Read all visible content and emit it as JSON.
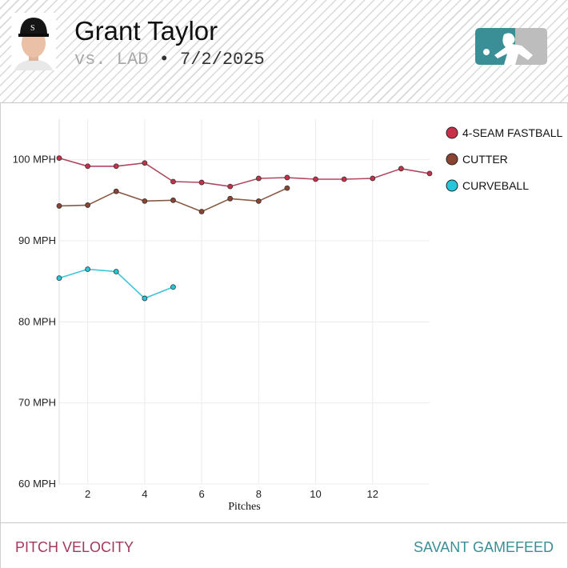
{
  "header": {
    "player_name": "Grant Taylor",
    "opponent": "vs. LAD",
    "separator": "•",
    "date": "7/2/2025",
    "team_logo": "white-sox-cap-avatar",
    "brand_logo": "mlb-logo"
  },
  "footer": {
    "left_label": "PITCH VELOCITY",
    "right_label": "SAVANT GAMEFEED"
  },
  "colors": {
    "fastball": "#c8304a",
    "cutter": "#8b4332",
    "curveball": "#26c6da",
    "fastball_line": "#b04760",
    "cutter_line": "#8b5a45",
    "curveball_line": "#3cc6d8",
    "footer_left": "#a3385d",
    "footer_right": "#3a8e95",
    "logo_left": "#3a8e95",
    "logo_right": "#bdbdbd"
  },
  "chart_data": {
    "type": "line",
    "xlabel": "Pitches",
    "ylabel": "",
    "xlim": [
      1,
      14
    ],
    "ylim": [
      60,
      105
    ],
    "x_ticks": [
      2,
      4,
      6,
      8,
      10,
      12
    ],
    "y_ticks": [
      60,
      70,
      80,
      90,
      100
    ],
    "y_tick_labels": [
      "60 MPH",
      "70 MPH",
      "80 MPH",
      "90 MPH",
      "100 MPH"
    ],
    "grid": true,
    "legend_position": "top-right",
    "series": [
      {
        "name": "4-SEAM FASTBALL",
        "color": "#c8304a",
        "x": [
          1,
          2,
          3,
          4,
          5,
          6,
          7,
          8,
          9,
          10,
          11,
          12,
          13,
          14
        ],
        "values": [
          100.2,
          99.2,
          99.2,
          99.6,
          97.3,
          97.2,
          96.7,
          97.7,
          97.8,
          97.6,
          97.6,
          97.7,
          98.9,
          98.3
        ]
      },
      {
        "name": "CUTTER",
        "color": "#8b4332",
        "x": [
          1,
          2,
          3,
          4,
          5,
          6,
          7,
          8,
          9
        ],
        "values": [
          94.3,
          94.4,
          96.1,
          94.9,
          95.0,
          93.6,
          95.2,
          94.9,
          96.5
        ]
      },
      {
        "name": "CURVEBALL",
        "color": "#26c6da",
        "x": [
          1,
          2,
          3,
          4,
          5
        ],
        "values": [
          85.4,
          86.5,
          86.2,
          82.9,
          84.3
        ]
      }
    ]
  }
}
